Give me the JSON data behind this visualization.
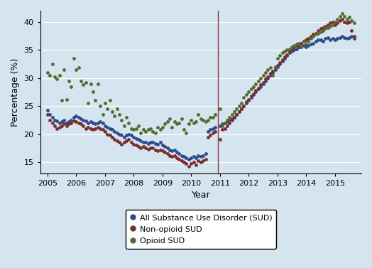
{
  "title": "",
  "xlabel": "Year",
  "ylabel": "Percentage (%)",
  "ylim": [
    13,
    42
  ],
  "xlim": [
    2004.75,
    2015.92
  ],
  "vline_x": 2010.92,
  "vline_color": "#8B3A3A",
  "bg_color": "#D5E5EF",
  "grid_color": "#ffffff",
  "legend_labels": [
    "All Substance Use Disorder (SUD)",
    "Non-opioid SUD",
    "Opioid SUD"
  ],
  "colors": [
    "#2E4A8C",
    "#7B2D2D",
    "#556B2F"
  ],
  "markersize": 4,
  "series": {
    "all_sud": [
      [
        2005.0,
        24.2
      ],
      [
        2005.08,
        23.5
      ],
      [
        2005.17,
        23.0
      ],
      [
        2005.25,
        22.5
      ],
      [
        2005.33,
        22.3
      ],
      [
        2005.42,
        22.0
      ],
      [
        2005.5,
        22.2
      ],
      [
        2005.58,
        22.5
      ],
      [
        2005.67,
        22.0
      ],
      [
        2005.75,
        22.2
      ],
      [
        2005.83,
        22.5
      ],
      [
        2005.92,
        23.0
      ],
      [
        2006.0,
        23.2
      ],
      [
        2006.08,
        23.0
      ],
      [
        2006.17,
        22.8
      ],
      [
        2006.25,
        22.5
      ],
      [
        2006.33,
        22.3
      ],
      [
        2006.42,
        22.0
      ],
      [
        2006.5,
        22.2
      ],
      [
        2006.58,
        22.0
      ],
      [
        2006.67,
        21.8
      ],
      [
        2006.75,
        22.0
      ],
      [
        2006.83,
        22.2
      ],
      [
        2006.92,
        22.0
      ],
      [
        2007.0,
        21.5
      ],
      [
        2007.08,
        21.2
      ],
      [
        2007.17,
        21.0
      ],
      [
        2007.25,
        20.8
      ],
      [
        2007.33,
        20.5
      ],
      [
        2007.42,
        20.2
      ],
      [
        2007.5,
        20.0
      ],
      [
        2007.58,
        19.8
      ],
      [
        2007.67,
        19.5
      ],
      [
        2007.75,
        19.8
      ],
      [
        2007.83,
        20.0
      ],
      [
        2007.92,
        19.8
      ],
      [
        2008.0,
        19.5
      ],
      [
        2008.08,
        19.2
      ],
      [
        2008.17,
        19.0
      ],
      [
        2008.25,
        18.8
      ],
      [
        2008.33,
        18.5
      ],
      [
        2008.42,
        18.5
      ],
      [
        2008.5,
        18.3
      ],
      [
        2008.58,
        18.5
      ],
      [
        2008.67,
        18.5
      ],
      [
        2008.75,
        18.3
      ],
      [
        2008.83,
        18.2
      ],
      [
        2008.92,
        18.5
      ],
      [
        2009.0,
        18.0
      ],
      [
        2009.08,
        17.8
      ],
      [
        2009.17,
        17.5
      ],
      [
        2009.25,
        17.2
      ],
      [
        2009.33,
        17.0
      ],
      [
        2009.42,
        17.2
      ],
      [
        2009.5,
        16.8
      ],
      [
        2009.58,
        16.5
      ],
      [
        2009.67,
        16.2
      ],
      [
        2009.75,
        16.0
      ],
      [
        2009.83,
        15.8
      ],
      [
        2009.92,
        15.5
      ],
      [
        2010.0,
        15.8
      ],
      [
        2010.08,
        16.0
      ],
      [
        2010.17,
        15.8
      ],
      [
        2010.25,
        16.2
      ],
      [
        2010.33,
        16.0
      ],
      [
        2010.42,
        16.2
      ],
      [
        2010.5,
        16.5
      ],
      [
        2010.58,
        20.5
      ],
      [
        2010.67,
        20.8
      ],
      [
        2010.75,
        21.0
      ],
      [
        2010.83,
        21.2
      ],
      [
        2011.0,
        21.5
      ],
      [
        2011.08,
        21.8
      ],
      [
        2011.17,
        22.0
      ],
      [
        2011.25,
        22.2
      ],
      [
        2011.33,
        22.5
      ],
      [
        2011.42,
        22.8
      ],
      [
        2011.5,
        23.0
      ],
      [
        2011.58,
        23.5
      ],
      [
        2011.67,
        24.0
      ],
      [
        2011.75,
        24.5
      ],
      [
        2011.83,
        25.0
      ],
      [
        2011.92,
        25.5
      ],
      [
        2012.0,
        26.0
      ],
      [
        2012.08,
        26.5
      ],
      [
        2012.17,
        27.0
      ],
      [
        2012.25,
        27.5
      ],
      [
        2012.33,
        28.0
      ],
      [
        2012.42,
        28.5
      ],
      [
        2012.5,
        29.0
      ],
      [
        2012.58,
        29.5
      ],
      [
        2012.67,
        30.0
      ],
      [
        2012.75,
        30.5
      ],
      [
        2012.83,
        31.0
      ],
      [
        2012.92,
        31.5
      ],
      [
        2013.0,
        32.0
      ],
      [
        2013.08,
        32.5
      ],
      [
        2013.17,
        33.0
      ],
      [
        2013.25,
        33.5
      ],
      [
        2013.33,
        34.0
      ],
      [
        2013.42,
        34.5
      ],
      [
        2013.5,
        34.8
      ],
      [
        2013.58,
        35.0
      ],
      [
        2013.67,
        35.2
      ],
      [
        2013.75,
        35.5
      ],
      [
        2013.83,
        35.5
      ],
      [
        2013.92,
        35.8
      ],
      [
        2014.0,
        35.5
      ],
      [
        2014.08,
        35.8
      ],
      [
        2014.17,
        36.0
      ],
      [
        2014.25,
        36.2
      ],
      [
        2014.33,
        36.5
      ],
      [
        2014.42,
        36.8
      ],
      [
        2014.5,
        36.8
      ],
      [
        2014.58,
        36.5
      ],
      [
        2014.67,
        37.0
      ],
      [
        2014.75,
        37.2
      ],
      [
        2014.83,
        36.8
      ],
      [
        2014.92,
        37.0
      ],
      [
        2015.0,
        36.8
      ],
      [
        2015.08,
        37.0
      ],
      [
        2015.17,
        37.2
      ],
      [
        2015.25,
        37.5
      ],
      [
        2015.33,
        37.2
      ],
      [
        2015.42,
        37.0
      ],
      [
        2015.5,
        37.2
      ],
      [
        2015.58,
        37.5
      ],
      [
        2015.67,
        37.0
      ]
    ],
    "non_opioid_sud": [
      [
        2005.0,
        23.5
      ],
      [
        2005.08,
        22.5
      ],
      [
        2005.17,
        22.0
      ],
      [
        2005.25,
        21.5
      ],
      [
        2005.33,
        21.0
      ],
      [
        2005.42,
        21.2
      ],
      [
        2005.5,
        21.5
      ],
      [
        2005.58,
        21.8
      ],
      [
        2005.67,
        21.5
      ],
      [
        2005.75,
        21.8
      ],
      [
        2005.83,
        22.0
      ],
      [
        2005.92,
        22.3
      ],
      [
        2006.0,
        22.2
      ],
      [
        2006.08,
        22.0
      ],
      [
        2006.17,
        21.8
      ],
      [
        2006.25,
        21.5
      ],
      [
        2006.33,
        21.0
      ],
      [
        2006.42,
        21.2
      ],
      [
        2006.5,
        21.0
      ],
      [
        2006.58,
        20.8
      ],
      [
        2006.67,
        21.0
      ],
      [
        2006.75,
        21.2
      ],
      [
        2006.83,
        21.0
      ],
      [
        2006.92,
        20.8
      ],
      [
        2007.0,
        20.5
      ],
      [
        2007.08,
        20.0
      ],
      [
        2007.17,
        19.8
      ],
      [
        2007.25,
        19.5
      ],
      [
        2007.33,
        19.0
      ],
      [
        2007.42,
        18.8
      ],
      [
        2007.5,
        18.5
      ],
      [
        2007.58,
        18.2
      ],
      [
        2007.67,
        18.5
      ],
      [
        2007.75,
        18.8
      ],
      [
        2007.83,
        19.0
      ],
      [
        2007.92,
        18.5
      ],
      [
        2008.0,
        18.2
      ],
      [
        2008.08,
        18.0
      ],
      [
        2008.17,
        17.8
      ],
      [
        2008.25,
        17.5
      ],
      [
        2008.33,
        17.8
      ],
      [
        2008.42,
        17.5
      ],
      [
        2008.5,
        17.3
      ],
      [
        2008.58,
        17.5
      ],
      [
        2008.67,
        17.5
      ],
      [
        2008.75,
        17.2
      ],
      [
        2008.83,
        17.0
      ],
      [
        2008.92,
        17.2
      ],
      [
        2009.0,
        17.0
      ],
      [
        2009.08,
        16.8
      ],
      [
        2009.17,
        16.5
      ],
      [
        2009.25,
        16.2
      ],
      [
        2009.33,
        16.0
      ],
      [
        2009.42,
        16.2
      ],
      [
        2009.5,
        15.8
      ],
      [
        2009.58,
        15.5
      ],
      [
        2009.67,
        15.2
      ],
      [
        2009.75,
        15.0
      ],
      [
        2009.83,
        14.8
      ],
      [
        2009.92,
        14.3
      ],
      [
        2010.0,
        14.8
      ],
      [
        2010.08,
        15.0
      ],
      [
        2010.17,
        14.5
      ],
      [
        2010.25,
        15.2
      ],
      [
        2010.33,
        15.0
      ],
      [
        2010.42,
        15.2
      ],
      [
        2010.5,
        15.5
      ],
      [
        2010.58,
        19.5
      ],
      [
        2010.67,
        19.8
      ],
      [
        2010.75,
        20.2
      ],
      [
        2010.83,
        20.5
      ],
      [
        2011.0,
        19.0
      ],
      [
        2011.08,
        20.8
      ],
      [
        2011.17,
        21.0
      ],
      [
        2011.25,
        21.5
      ],
      [
        2011.33,
        22.0
      ],
      [
        2011.42,
        22.5
      ],
      [
        2011.5,
        23.0
      ],
      [
        2011.58,
        23.5
      ],
      [
        2011.67,
        24.0
      ],
      [
        2011.75,
        24.5
      ],
      [
        2011.83,
        25.0
      ],
      [
        2011.92,
        25.8
      ],
      [
        2012.0,
        26.2
      ],
      [
        2012.08,
        26.8
      ],
      [
        2012.17,
        27.2
      ],
      [
        2012.25,
        27.8
      ],
      [
        2012.33,
        28.2
      ],
      [
        2012.42,
        28.8
      ],
      [
        2012.5,
        29.2
      ],
      [
        2012.58,
        29.8
      ],
      [
        2012.67,
        30.2
      ],
      [
        2012.75,
        30.8
      ],
      [
        2012.83,
        31.2
      ],
      [
        2012.92,
        31.8
      ],
      [
        2013.0,
        32.2
      ],
      [
        2013.08,
        32.8
      ],
      [
        2013.17,
        33.2
      ],
      [
        2013.25,
        33.8
      ],
      [
        2013.33,
        34.2
      ],
      [
        2013.42,
        34.8
      ],
      [
        2013.5,
        35.2
      ],
      [
        2013.58,
        35.5
      ],
      [
        2013.67,
        35.8
      ],
      [
        2013.75,
        36.0
      ],
      [
        2013.83,
        36.2
      ],
      [
        2013.92,
        36.5
      ],
      [
        2014.0,
        36.8
      ],
      [
        2014.08,
        37.0
      ],
      [
        2014.17,
        37.5
      ],
      [
        2014.25,
        37.8
      ],
      [
        2014.33,
        38.0
      ],
      [
        2014.42,
        38.5
      ],
      [
        2014.5,
        38.8
      ],
      [
        2014.58,
        39.0
      ],
      [
        2014.67,
        39.2
      ],
      [
        2014.75,
        39.5
      ],
      [
        2014.83,
        39.8
      ],
      [
        2014.92,
        40.0
      ],
      [
        2015.0,
        39.5
      ],
      [
        2015.08,
        39.8
      ],
      [
        2015.17,
        40.2
      ],
      [
        2015.25,
        40.5
      ],
      [
        2015.33,
        40.0
      ],
      [
        2015.42,
        39.8
      ],
      [
        2015.5,
        40.0
      ],
      [
        2015.58,
        38.5
      ],
      [
        2015.67,
        37.5
      ]
    ],
    "opioid_sud": [
      [
        2005.0,
        31.0
      ],
      [
        2005.08,
        30.5
      ],
      [
        2005.17,
        32.5
      ],
      [
        2005.25,
        30.2
      ],
      [
        2005.33,
        29.8
      ],
      [
        2005.42,
        30.5
      ],
      [
        2005.5,
        26.0
      ],
      [
        2005.58,
        31.5
      ],
      [
        2005.67,
        26.2
      ],
      [
        2005.75,
        29.5
      ],
      [
        2005.83,
        28.5
      ],
      [
        2005.92,
        33.5
      ],
      [
        2006.0,
        31.5
      ],
      [
        2006.08,
        31.8
      ],
      [
        2006.17,
        29.5
      ],
      [
        2006.25,
        28.8
      ],
      [
        2006.33,
        29.2
      ],
      [
        2006.42,
        25.5
      ],
      [
        2006.5,
        29.0
      ],
      [
        2006.58,
        27.5
      ],
      [
        2006.67,
        26.0
      ],
      [
        2006.75,
        29.0
      ],
      [
        2006.83,
        25.0
      ],
      [
        2006.92,
        23.5
      ],
      [
        2007.0,
        25.5
      ],
      [
        2007.08,
        24.5
      ],
      [
        2007.17,
        26.0
      ],
      [
        2007.25,
        24.0
      ],
      [
        2007.33,
        23.2
      ],
      [
        2007.42,
        24.5
      ],
      [
        2007.5,
        23.5
      ],
      [
        2007.58,
        22.5
      ],
      [
        2007.67,
        21.5
      ],
      [
        2007.75,
        23.0
      ],
      [
        2007.83,
        22.0
      ],
      [
        2007.92,
        21.0
      ],
      [
        2008.0,
        20.8
      ],
      [
        2008.08,
        21.0
      ],
      [
        2008.17,
        21.5
      ],
      [
        2008.25,
        20.2
      ],
      [
        2008.33,
        20.8
      ],
      [
        2008.42,
        20.5
      ],
      [
        2008.5,
        20.8
      ],
      [
        2008.58,
        21.0
      ],
      [
        2008.67,
        20.5
      ],
      [
        2008.75,
        20.2
      ],
      [
        2008.83,
        21.2
      ],
      [
        2008.92,
        20.8
      ],
      [
        2009.0,
        21.2
      ],
      [
        2009.08,
        21.8
      ],
      [
        2009.17,
        22.2
      ],
      [
        2009.25,
        22.8
      ],
      [
        2009.33,
        21.2
      ],
      [
        2009.42,
        22.2
      ],
      [
        2009.5,
        21.8
      ],
      [
        2009.58,
        22.0
      ],
      [
        2009.67,
        22.8
      ],
      [
        2009.75,
        20.8
      ],
      [
        2009.83,
        20.2
      ],
      [
        2009.92,
        21.8
      ],
      [
        2010.0,
        22.5
      ],
      [
        2010.08,
        22.0
      ],
      [
        2010.17,
        22.2
      ],
      [
        2010.25,
        23.5
      ],
      [
        2010.33,
        22.8
      ],
      [
        2010.42,
        22.5
      ],
      [
        2010.5,
        22.2
      ],
      [
        2010.58,
        22.5
      ],
      [
        2010.67,
        23.0
      ],
      [
        2010.75,
        23.0
      ],
      [
        2010.83,
        23.5
      ],
      [
        2011.0,
        24.5
      ],
      [
        2011.08,
        21.5
      ],
      [
        2011.17,
        22.0
      ],
      [
        2011.25,
        22.5
      ],
      [
        2011.33,
        23.0
      ],
      [
        2011.42,
        23.5
      ],
      [
        2011.5,
        24.0
      ],
      [
        2011.58,
        24.5
      ],
      [
        2011.67,
        25.0
      ],
      [
        2011.75,
        25.5
      ],
      [
        2011.83,
        26.5
      ],
      [
        2011.92,
        27.0
      ],
      [
        2012.0,
        27.5
      ],
      [
        2012.08,
        28.0
      ],
      [
        2012.17,
        28.5
      ],
      [
        2012.25,
        29.0
      ],
      [
        2012.33,
        29.5
      ],
      [
        2012.42,
        30.0
      ],
      [
        2012.5,
        30.5
      ],
      [
        2012.58,
        31.0
      ],
      [
        2012.67,
        31.5
      ],
      [
        2012.75,
        31.8
      ],
      [
        2012.83,
        30.5
      ],
      [
        2012.92,
        32.0
      ],
      [
        2013.0,
        33.5
      ],
      [
        2013.08,
        34.0
      ],
      [
        2013.17,
        34.5
      ],
      [
        2013.25,
        34.8
      ],
      [
        2013.33,
        35.0
      ],
      [
        2013.42,
        35.2
      ],
      [
        2013.5,
        35.5
      ],
      [
        2013.58,
        35.8
      ],
      [
        2013.67,
        36.0
      ],
      [
        2013.75,
        36.2
      ],
      [
        2013.83,
        35.5
      ],
      [
        2013.92,
        36.5
      ],
      [
        2014.0,
        36.0
      ],
      [
        2014.08,
        36.5
      ],
      [
        2014.17,
        37.0
      ],
      [
        2014.25,
        37.5
      ],
      [
        2014.33,
        37.8
      ],
      [
        2014.42,
        38.0
      ],
      [
        2014.5,
        38.2
      ],
      [
        2014.58,
        38.5
      ],
      [
        2014.67,
        38.8
      ],
      [
        2014.75,
        39.0
      ],
      [
        2014.83,
        39.2
      ],
      [
        2014.92,
        39.5
      ],
      [
        2015.0,
        40.0
      ],
      [
        2015.08,
        40.5
      ],
      [
        2015.17,
        41.0
      ],
      [
        2015.25,
        41.5
      ],
      [
        2015.33,
        41.0
      ],
      [
        2015.42,
        40.5
      ],
      [
        2015.5,
        40.8
      ],
      [
        2015.58,
        40.2
      ],
      [
        2015.67,
        39.8
      ]
    ]
  }
}
